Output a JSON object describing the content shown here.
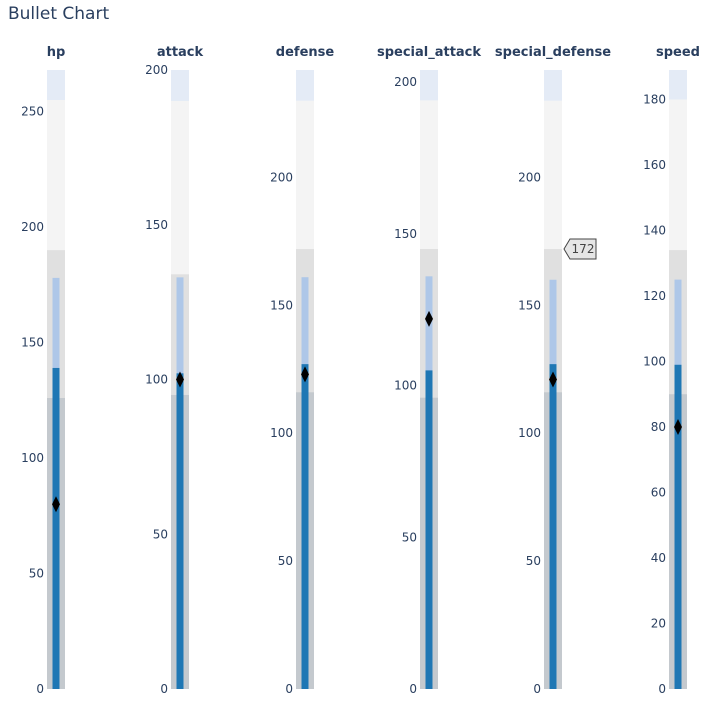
{
  "chart_data": {
    "type": "bullet",
    "title": "Bullet Chart",
    "orientation": "vertical",
    "colors": {
      "range_1": "#c4c9ce",
      "range_2": "#e0e0e0",
      "range_3": "#f4f4f4",
      "range_4": "#e4ebf6",
      "measure_bg": "#aec7e8",
      "measure": "#1f77b4",
      "marker": "#000000",
      "tick_text": "#2a3f5f"
    },
    "panels": [
      {
        "name": "hp",
        "ranges": [
          126,
          190,
          255,
          268
        ],
        "measures": [
          139,
          178
        ],
        "marker": 80,
        "ylim": [
          0,
          268
        ],
        "ticks": [
          0,
          50,
          100,
          150,
          200,
          250
        ]
      },
      {
        "name": "attack",
        "ranges": [
          95,
          134,
          190,
          200
        ],
        "measures": [
          102,
          133
        ],
        "marker": 100,
        "ylim": [
          0,
          200
        ],
        "ticks": [
          0,
          50,
          100,
          150,
          200
        ]
      },
      {
        "name": "defense",
        "ranges": [
          116,
          172,
          230,
          242
        ],
        "measures": [
          127,
          161
        ],
        "marker": 123,
        "ylim": [
          0,
          242
        ],
        "ticks": [
          0,
          50,
          100,
          150,
          200
        ]
      },
      {
        "name": "special_attack",
        "ranges": [
          96,
          145,
          194,
          204
        ],
        "measures": [
          105,
          136
        ],
        "marker": 122,
        "ylim": [
          0,
          204
        ],
        "ticks": [
          0,
          50,
          100,
          150,
          200
        ]
      },
      {
        "name": "special_defense",
        "ranges": [
          116,
          172,
          230,
          242
        ],
        "measures": [
          127,
          160
        ],
        "marker": 121,
        "ylim": [
          0,
          242
        ],
        "ticks": [
          0,
          50,
          100,
          150,
          200
        ]
      },
      {
        "name": "speed",
        "ranges": [
          90,
          134,
          180,
          189
        ],
        "measures": [
          99,
          125
        ],
        "marker": 80,
        "ylim": [
          0,
          189
        ],
        "ticks": [
          0,
          20,
          40,
          60,
          80,
          100,
          120,
          140,
          160,
          180
        ]
      }
    ],
    "hover_label": {
      "panel": "special_defense",
      "value": 172,
      "text": "172"
    }
  }
}
